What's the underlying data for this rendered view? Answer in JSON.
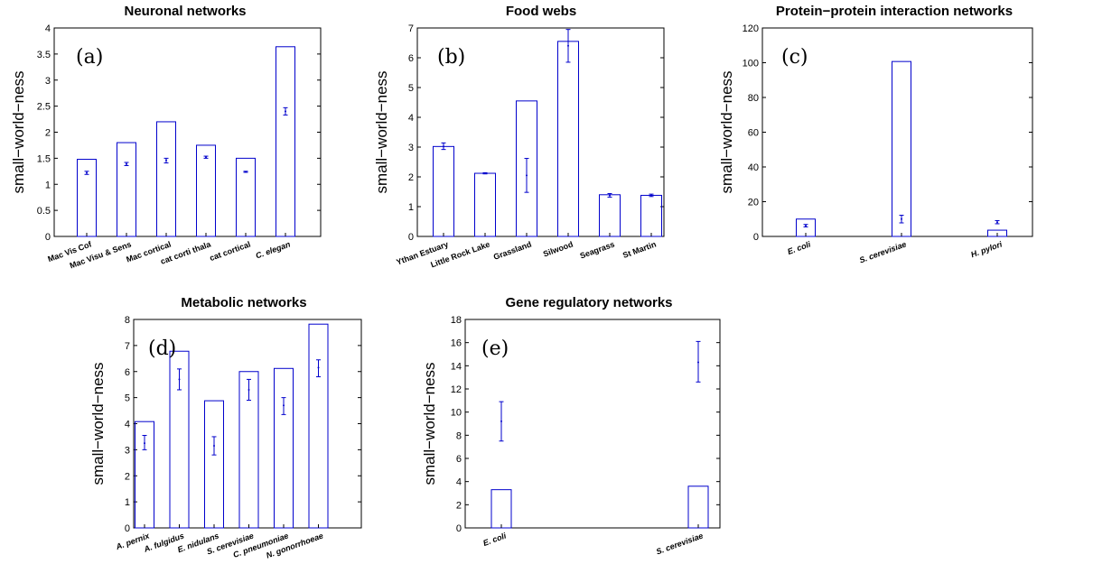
{
  "chart_data": [
    {
      "id": "a",
      "type": "bar",
      "title": "Neuronal networks",
      "panel_label": "(a)",
      "ylabel": "small−world−ness",
      "ylim": [
        0,
        4
      ],
      "yticks": [
        "0",
        "0.5",
        "1",
        "1.5",
        "2",
        "2.5",
        "3",
        "3.5",
        "4"
      ],
      "yticks_values": [
        0,
        0.5,
        1,
        1.5,
        2,
        2.5,
        3,
        3.5,
        4
      ],
      "categories": [
        "Mac Vis Cof",
        "Mac Visu & Sens",
        "Mac cortical",
        "cat corti thala",
        "cat cortical",
        "C. elegan"
      ],
      "italic_categories": [
        false,
        false,
        false,
        false,
        false,
        true
      ],
      "values": [
        1.48,
        1.8,
        2.2,
        1.75,
        1.5,
        3.64
      ],
      "errorbars": [
        {
          "mean": 1.22,
          "low": 1.19,
          "high": 1.25
        },
        {
          "mean": 1.39,
          "low": 1.36,
          "high": 1.42
        },
        {
          "mean": 1.46,
          "low": 1.41,
          "high": 1.5
        },
        {
          "mean": 1.52,
          "low": 1.5,
          "high": 1.54
        },
        {
          "mean": 1.24,
          "low": 1.23,
          "high": 1.25
        },
        {
          "mean": 2.4,
          "low": 2.33,
          "high": 2.47
        }
      ],
      "bar_color": "#0000cc",
      "errorbar_color": "#0000cc"
    },
    {
      "id": "b",
      "type": "bar",
      "title": "Food webs",
      "panel_label": "(b)",
      "ylabel": "small−world−ness",
      "ylim": [
        0,
        7
      ],
      "yticks": [
        "0",
        "1",
        "2",
        "3",
        "4",
        "5",
        "6",
        "7"
      ],
      "yticks_values": [
        0,
        1,
        2,
        3,
        4,
        5,
        6,
        7
      ],
      "categories": [
        "Ythan Estuary",
        "Little Rock Lake",
        "Grassland",
        "Silwood",
        "Seagrass",
        "St Martin"
      ],
      "italic_categories": [
        false,
        false,
        false,
        false,
        false,
        false
      ],
      "values": [
        3.02,
        2.12,
        4.55,
        6.55,
        1.4,
        1.38
      ],
      "errorbars": [
        {
          "mean": 3.02,
          "low": 2.92,
          "high": 3.14
        },
        {
          "mean": 2.12,
          "low": 2.1,
          "high": 2.14
        },
        {
          "mean": 2.05,
          "low": 1.48,
          "high": 2.62
        },
        {
          "mean": 6.4,
          "low": 5.85,
          "high": 6.95
        },
        {
          "mean": 1.38,
          "low": 1.32,
          "high": 1.44
        },
        {
          "mean": 1.38,
          "low": 1.34,
          "high": 1.42
        }
      ],
      "bar_color": "#0000cc",
      "errorbar_color": "#0000cc"
    },
    {
      "id": "c",
      "type": "bar",
      "title": "Protein−protein interaction networks",
      "panel_label": "(c)",
      "ylabel": "small−world−ness",
      "ylim": [
        0,
        120
      ],
      "yticks": [
        "0",
        "20",
        "40",
        "60",
        "80",
        "100",
        "120"
      ],
      "yticks_values": [
        0,
        20,
        40,
        60,
        80,
        100,
        120
      ],
      "categories": [
        "E. coli",
        "S. cerevisiae",
        "H. pylori"
      ],
      "italic_categories": [
        true,
        true,
        true
      ],
      "values": [
        10.0,
        100.7,
        3.6
      ],
      "errorbars": [
        {
          "mean": 6.2,
          "low": 5.5,
          "high": 6.9
        },
        {
          "mean": 10.0,
          "low": 7.8,
          "high": 12.2
        },
        {
          "mean": 8.2,
          "low": 7.3,
          "high": 9.1
        }
      ],
      "bar_color": "#0000cc",
      "errorbar_color": "#0000cc"
    },
    {
      "id": "d",
      "type": "bar",
      "title": "Metabolic networks",
      "panel_label": "(d)",
      "ylabel": "small−world−ness",
      "ylim": [
        0,
        8
      ],
      "yticks": [
        "0",
        "1",
        "2",
        "3",
        "4",
        "5",
        "6",
        "7",
        "8"
      ],
      "yticks_values": [
        0,
        1,
        2,
        3,
        4,
        5,
        6,
        7,
        8
      ],
      "categories": [
        "A. pernix",
        "A. fulgidus",
        "E. nidulans",
        "S. cerevisiae",
        "C. pneumoniae",
        "N. gonorrhoeae"
      ],
      "italic_categories": [
        true,
        true,
        true,
        true,
        true,
        true
      ],
      "values": [
        4.08,
        6.78,
        4.88,
        6.0,
        6.12,
        7.82
      ],
      "errorbars": [
        {
          "mean": 3.25,
          "low": 3.0,
          "high": 3.55
        },
        {
          "mean": 5.7,
          "low": 5.3,
          "high": 6.1
        },
        {
          "mean": 3.15,
          "low": 2.8,
          "high": 3.5
        },
        {
          "mean": 5.3,
          "low": 4.9,
          "high": 5.7
        },
        {
          "mean": 4.7,
          "low": 4.35,
          "high": 5.0
        },
        {
          "mean": 6.15,
          "low": 5.8,
          "high": 6.45
        }
      ],
      "bar_color": "#0000cc",
      "errorbar_color": "#0000cc"
    },
    {
      "id": "e",
      "type": "bar",
      "title": "Gene regulatory networks",
      "panel_label": "(e)",
      "ylabel": "small−world−ness",
      "ylim": [
        0,
        18
      ],
      "yticks": [
        "0",
        "2",
        "4",
        "6",
        "8",
        "10",
        "12",
        "14",
        "16",
        "18"
      ],
      "yticks_values": [
        0,
        2,
        4,
        6,
        8,
        10,
        12,
        14,
        16,
        18
      ],
      "categories": [
        "E. coli",
        "S. cerevisiae"
      ],
      "italic_categories": [
        true,
        true
      ],
      "values": [
        3.3,
        3.6
      ],
      "errorbars": [
        {
          "mean": 9.2,
          "low": 7.5,
          "high": 10.9
        },
        {
          "mean": 14.3,
          "low": 12.6,
          "high": 16.1
        }
      ],
      "bar_color": "#0000cc",
      "errorbar_color": "#0000cc"
    }
  ]
}
